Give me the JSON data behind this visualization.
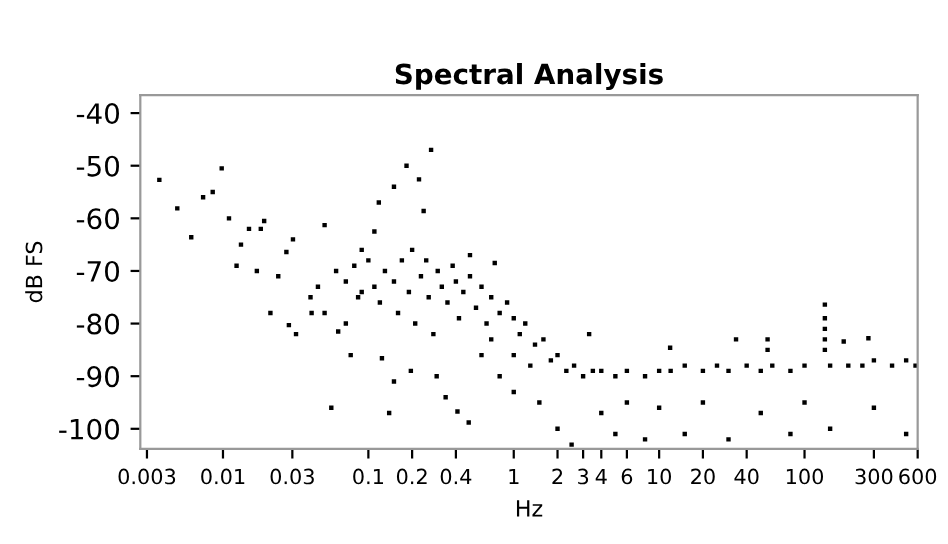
{
  "chart_data": {
    "type": "scatter",
    "title": "Spectral Analysis",
    "xlabel": "Hz",
    "ylabel": "dB FS",
    "log": "x",
    "grid": false,
    "marker": "square",
    "color": "#000000",
    "xlim": [
      0.0027,
      600
    ],
    "xticks": [
      0.003,
      0.01,
      0.03,
      0.1,
      0.2,
      0.4,
      1,
      2,
      3,
      4,
      6,
      10,
      20,
      40,
      100,
      300,
      600
    ],
    "ylim": [
      -103.8,
      -36.6
    ],
    "yticks": [
      -100,
      -90,
      -80,
      -70,
      -60,
      -50,
      -40
    ],
    "x": [
      0.00365,
      0.00485,
      0.00605,
      0.0073,
      0.0085,
      0.0098,
      0.011,
      0.0124,
      0.0133,
      0.0151,
      0.0171,
      0.0182,
      0.0192,
      0.0212,
      0.024,
      0.0273,
      0.0284,
      0.0303,
      0.0318,
      0.04,
      0.0407,
      0.045,
      0.05,
      0.05,
      0.0556,
      0.06,
      0.062,
      0.07,
      0.07,
      0.0756,
      0.08,
      0.085,
      0.09,
      0.09,
      0.1,
      0.11,
      0.11,
      0.118,
      0.12,
      0.124,
      0.13,
      0.139,
      0.15,
      0.15,
      0.15,
      0.16,
      0.17,
      0.183,
      0.19,
      0.196,
      0.2,
      0.21,
      0.223,
      0.23,
      0.24,
      0.25,
      0.26,
      0.27,
      0.28,
      0.295,
      0.3,
      0.32,
      0.34,
      0.35,
      0.38,
      0.4,
      0.41,
      0.42,
      0.45,
      0.49,
      0.5,
      0.5,
      0.55,
      0.6,
      0.6,
      0.65,
      0.7,
      0.7,
      0.74,
      0.8,
      0.8,
      0.9,
      1,
      1,
      1,
      1.1,
      1.2,
      1.3,
      1.4,
      1.5,
      1.6,
      1.8,
      2,
      2,
      2.3,
      2.5,
      2.6,
      3,
      3.3,
      3.5,
      4,
      4,
      5,
      5,
      6,
      6,
      8,
      8,
      10,
      10,
      11.9,
      12,
      15,
      15,
      20,
      20,
      25,
      30,
      30,
      33.8,
      40,
      50,
      50,
      55.7,
      55.7,
      60,
      80,
      80,
      100,
      100,
      138,
      138,
      138,
      138,
      138,
      150,
      150,
      186,
      200,
      250,
      275,
      300,
      300,
      400,
      500,
      500,
      580
    ],
    "values": [
      -52.7,
      -58.1,
      -63.6,
      -56,
      -55,
      -50.5,
      -60,
      -69,
      -65,
      -62,
      -70,
      -62,
      -60.5,
      -78,
      -71,
      -66.4,
      -80.3,
      -64,
      -82,
      -75,
      -78,
      -73,
      -61.3,
      -78,
      -96,
      -70,
      -81.5,
      -72,
      -80,
      -86,
      -69,
      -75,
      -74,
      -66,
      -68,
      -73,
      -62.5,
      -57,
      -76,
      -86.6,
      -70,
      -97,
      -72,
      -54,
      -91,
      -78,
      -68,
      -50,
      -74,
      -89,
      -66,
      -80,
      -52.6,
      -71,
      -58.6,
      -68,
      -75,
      -47,
      -82,
      -90,
      -70,
      -73,
      -94,
      -76,
      -69,
      -72,
      -96.7,
      -79,
      -74,
      -98.8,
      -71,
      -67,
      -77,
      -73,
      -86,
      -80,
      -75,
      -83,
      -68.5,
      -78,
      -90,
      -76,
      -79,
      -86,
      -93,
      -82,
      -80,
      -88,
      -84,
      -95,
      -83,
      -87,
      -86,
      -100,
      -89,
      -103,
      -88,
      -90,
      -82,
      -89,
      -89,
      -97,
      -90,
      -101,
      -89,
      -95,
      -90,
      -102,
      -89,
      -96,
      -84.6,
      -89,
      -88,
      -101,
      -89,
      -95,
      -88,
      -89,
      -102,
      -83,
      -88,
      -89,
      -97,
      -83,
      -85,
      -88,
      -89,
      -101,
      -88,
      -95,
      -76.4,
      -79,
      -81,
      -83,
      -85,
      -88,
      -100,
      -83.4,
      -88,
      -88,
      -82.8,
      -87,
      -96,
      -88,
      -87,
      -101,
      -88
    ]
  }
}
